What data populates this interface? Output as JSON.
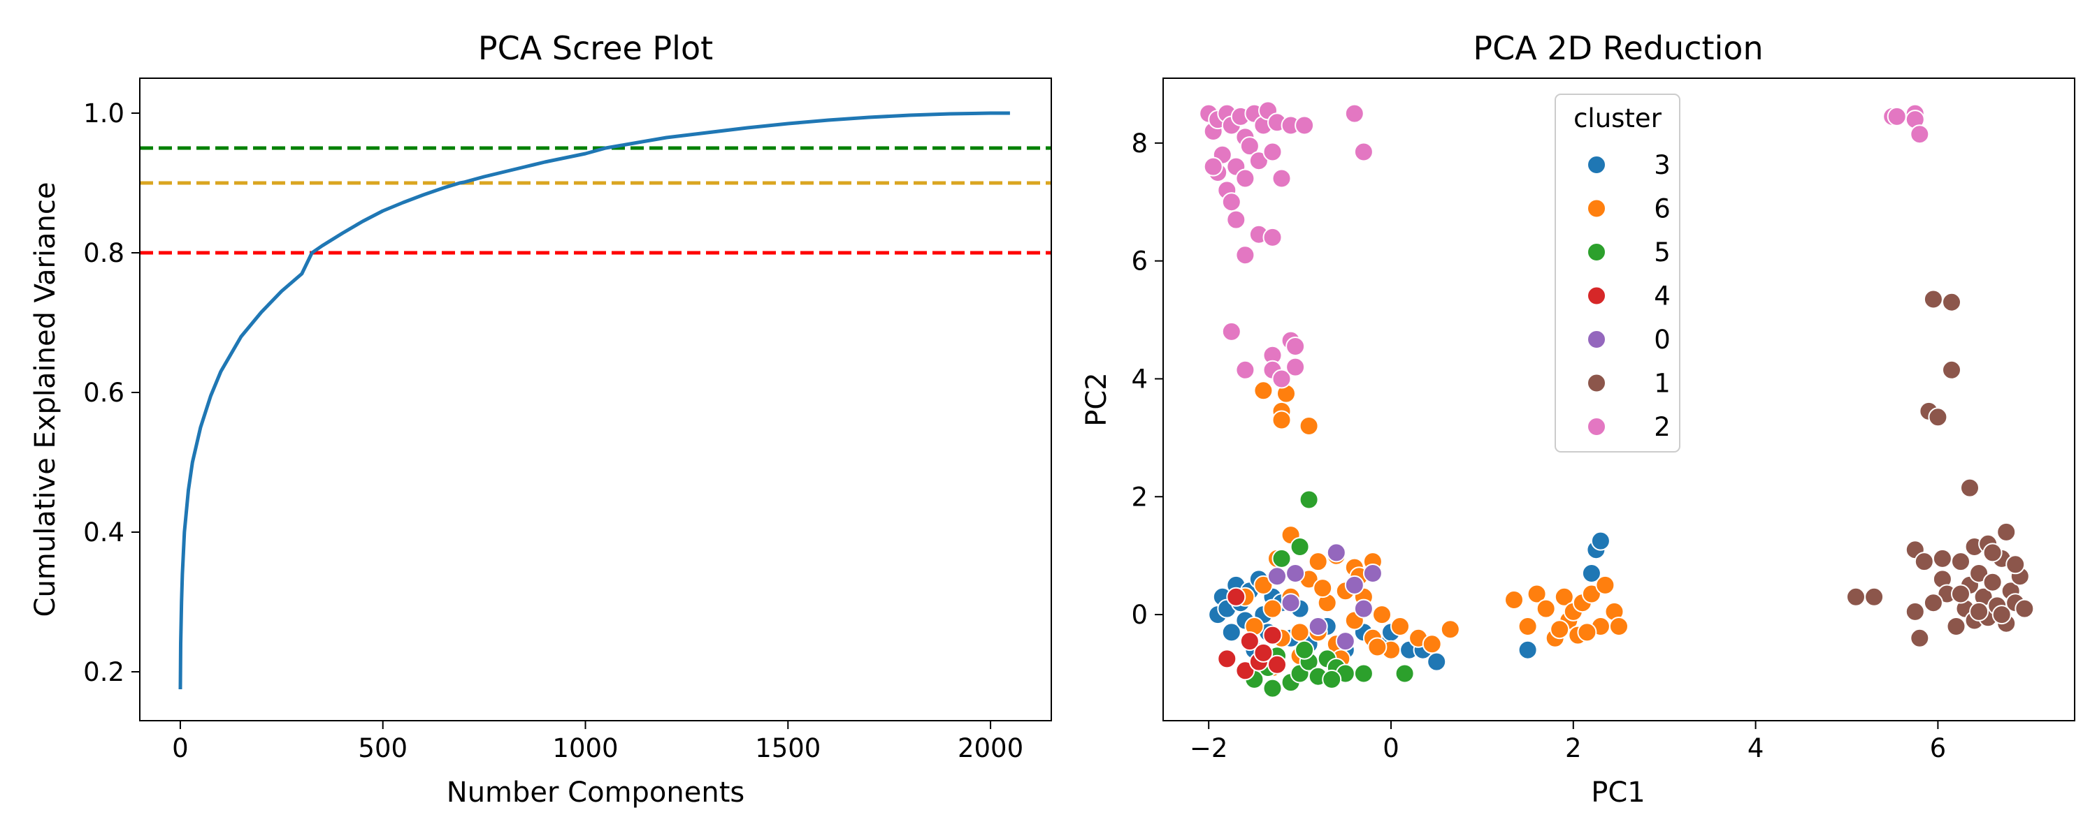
{
  "chart_data": [
    {
      "type": "line",
      "title": "PCA Scree Plot",
      "xlabel": "Number Components",
      "ylabel": "Cumulative Explained Variance",
      "xlim": [
        -100,
        2150
      ],
      "ylim": [
        0.13,
        1.05
      ],
      "xticks": [
        0,
        500,
        1000,
        1500,
        2000
      ],
      "yticks": [
        0.2,
        0.4,
        0.6,
        0.8,
        1.0
      ],
      "xtick_labels": [
        "0",
        "500",
        "1000",
        "1500",
        "2000"
      ],
      "ytick_labels": [
        "0.2",
        "0.4",
        "0.6",
        "0.8",
        "1.0"
      ],
      "grid": false,
      "series": [
        {
          "color": "#1f77b4",
          "x": [
            0,
            1,
            3,
            5,
            10,
            20,
            30,
            50,
            75,
            100,
            150,
            200,
            250,
            300,
            325,
            350,
            400,
            450,
            500,
            550,
            600,
            650,
            690,
            700,
            750,
            800,
            850,
            900,
            950,
            1000,
            1050,
            1100,
            1150,
            1200,
            1300,
            1400,
            1500,
            1600,
            1700,
            1800,
            1900,
            2000,
            2048
          ],
          "y": [
            0.175,
            0.24,
            0.3,
            0.34,
            0.4,
            0.46,
            0.5,
            0.55,
            0.595,
            0.63,
            0.68,
            0.715,
            0.745,
            0.77,
            0.8,
            0.81,
            0.828,
            0.845,
            0.86,
            0.872,
            0.883,
            0.893,
            0.9,
            0.901,
            0.909,
            0.916,
            0.923,
            0.93,
            0.936,
            0.942,
            0.95,
            0.955,
            0.96,
            0.965,
            0.972,
            0.979,
            0.985,
            0.99,
            0.994,
            0.997,
            0.999,
            1.0,
            1.0
          ]
        }
      ],
      "hlines": [
        {
          "y": 0.95,
          "color": "#008000",
          "style": "dashed"
        },
        {
          "y": 0.9,
          "color": "#daa520",
          "style": "dashed"
        },
        {
          "y": 0.8,
          "color": "#ff0000",
          "style": "dashed"
        }
      ]
    },
    {
      "type": "scatter",
      "title": "PCA 2D Reduction",
      "xlabel": "PC1",
      "ylabel": "PC2",
      "xlim": [
        -2.5,
        7.5
      ],
      "ylim": [
        -1.8,
        9.1
      ],
      "xticks": [
        -2,
        0,
        2,
        4,
        6
      ],
      "yticks": [
        0,
        2,
        4,
        6,
        8
      ],
      "xtick_labels": [
        "−2",
        "0",
        "2",
        "4",
        "6"
      ],
      "ytick_labels": [
        "0",
        "2",
        "4",
        "6",
        "8"
      ],
      "grid": false,
      "legend": {
        "title": "cluster",
        "position": "upper center"
      },
      "series": [
        {
          "name": "3",
          "color": "#1f77b4",
          "points": [
            [
              -1.9,
              0.0
            ],
            [
              -1.85,
              0.3
            ],
            [
              -1.8,
              0.1
            ],
            [
              -1.75,
              -0.3
            ],
            [
              -1.7,
              0.5
            ],
            [
              -1.65,
              0.2
            ],
            [
              -1.6,
              -0.1
            ],
            [
              -1.55,
              0.4
            ],
            [
              -1.5,
              -0.6
            ],
            [
              -1.45,
              0.6
            ],
            [
              -1.4,
              0.0
            ],
            [
              -1.35,
              -0.3
            ],
            [
              -1.3,
              0.3
            ],
            [
              -1.25,
              -0.8
            ],
            [
              -1.2,
              0.2
            ],
            [
              -1.1,
              -0.4
            ],
            [
              -1.0,
              0.1
            ],
            [
              -0.9,
              -0.5
            ],
            [
              -0.7,
              -0.2
            ],
            [
              -0.5,
              -0.6
            ],
            [
              -0.3,
              -0.3
            ],
            [
              -0.1,
              -0.5
            ],
            [
              0.0,
              -0.3
            ],
            [
              0.2,
              -0.6
            ],
            [
              0.35,
              -0.6
            ],
            [
              0.45,
              -0.5
            ],
            [
              0.5,
              -0.8
            ],
            [
              1.5,
              -0.6
            ],
            [
              2.2,
              0.7
            ],
            [
              2.25,
              1.1
            ],
            [
              2.3,
              1.25
            ]
          ]
        },
        {
          "name": "6",
          "color": "#ff7f0e",
          "points": [
            [
              -1.4,
              3.8
            ],
            [
              -1.2,
              3.45
            ],
            [
              -1.2,
              3.3
            ],
            [
              -1.15,
              3.75
            ],
            [
              -0.9,
              3.2
            ],
            [
              -1.25,
              0.95
            ],
            [
              -1.1,
              1.35
            ],
            [
              -0.8,
              0.9
            ],
            [
              -0.6,
              1.0
            ],
            [
              -0.4,
              0.8
            ],
            [
              -0.2,
              0.9
            ],
            [
              -1.6,
              0.3
            ],
            [
              -1.5,
              -0.2
            ],
            [
              -1.4,
              0.5
            ],
            [
              -1.3,
              0.1
            ],
            [
              -1.2,
              -0.4
            ],
            [
              -1.1,
              0.3
            ],
            [
              -1.0,
              -0.7
            ],
            [
              -0.9,
              0.6
            ],
            [
              -0.8,
              -0.3
            ],
            [
              -0.7,
              0.2
            ],
            [
              -0.6,
              -0.5
            ],
            [
              -0.5,
              0.4
            ],
            [
              -0.4,
              -0.1
            ],
            [
              -0.3,
              0.3
            ],
            [
              -0.2,
              -0.4
            ],
            [
              -0.1,
              0.0
            ],
            [
              0.0,
              -0.6
            ],
            [
              0.1,
              -0.2
            ],
            [
              0.3,
              -0.4
            ],
            [
              0.45,
              -0.5
            ],
            [
              0.65,
              -0.25
            ],
            [
              -1.3,
              -0.9
            ],
            [
              -1.0,
              -0.3
            ],
            [
              -0.75,
              0.45
            ],
            [
              -0.55,
              -0.75
            ],
            [
              -0.35,
              0.65
            ],
            [
              -0.15,
              -0.55
            ],
            [
              1.35,
              0.25
            ],
            [
              1.5,
              -0.2
            ],
            [
              1.6,
              0.35
            ],
            [
              1.7,
              0.1
            ],
            [
              1.8,
              -0.4
            ],
            [
              1.9,
              0.3
            ],
            [
              1.95,
              -0.1
            ],
            [
              2.0,
              0.05
            ],
            [
              2.05,
              -0.35
            ],
            [
              2.1,
              0.2
            ],
            [
              2.2,
              0.35
            ],
            [
              2.3,
              -0.2
            ],
            [
              2.35,
              0.5
            ],
            [
              2.45,
              0.05
            ],
            [
              2.5,
              -0.2
            ],
            [
              1.85,
              -0.25
            ],
            [
              2.15,
              -0.3
            ]
          ]
        },
        {
          "name": "5",
          "color": "#2ca02c",
          "points": [
            [
              -0.9,
              1.95
            ],
            [
              -1.0,
              1.15
            ],
            [
              -1.2,
              0.95
            ],
            [
              -1.3,
              -1.25
            ],
            [
              -1.25,
              -0.7
            ],
            [
              -1.1,
              -1.15
            ],
            [
              -1.0,
              -1.0
            ],
            [
              -0.9,
              -0.8
            ],
            [
              -0.8,
              -1.05
            ],
            [
              -0.7,
              -0.75
            ],
            [
              -0.6,
              -0.9
            ],
            [
              -0.5,
              -1.0
            ],
            [
              -0.3,
              -1.0
            ],
            [
              0.15,
              -1.0
            ],
            [
              -1.5,
              -1.1
            ],
            [
              -1.35,
              -0.9
            ],
            [
              -0.95,
              -0.6
            ],
            [
              -0.65,
              -1.1
            ]
          ]
        },
        {
          "name": "4",
          "color": "#d62728",
          "points": [
            [
              -1.8,
              -0.75
            ],
            [
              -1.7,
              0.3
            ],
            [
              -1.6,
              -0.95
            ],
            [
              -1.55,
              -0.45
            ],
            [
              -1.45,
              -0.8
            ],
            [
              -1.3,
              -0.35
            ],
            [
              -1.4,
              -0.65
            ],
            [
              -1.25,
              -0.85
            ]
          ]
        },
        {
          "name": "0",
          "color": "#9467bd",
          "points": [
            [
              -1.25,
              0.65
            ],
            [
              -1.05,
              0.7
            ],
            [
              -0.6,
              1.05
            ],
            [
              -0.4,
              0.5
            ],
            [
              -0.2,
              0.7
            ],
            [
              -1.1,
              0.2
            ],
            [
              -0.8,
              -0.2
            ],
            [
              -0.3,
              0.1
            ],
            [
              -0.5,
              -0.45
            ]
          ]
        },
        {
          "name": "1",
          "color": "#8c564b",
          "points": [
            [
              5.1,
              0.3
            ],
            [
              5.3,
              0.3
            ],
            [
              5.75,
              1.1
            ],
            [
              5.75,
              0.05
            ],
            [
              5.8,
              -0.4
            ],
            [
              5.85,
              0.9
            ],
            [
              5.9,
              3.45
            ],
            [
              5.95,
              5.35
            ],
            [
              6.0,
              3.35
            ],
            [
              6.05,
              0.6
            ],
            [
              6.1,
              0.35
            ],
            [
              6.15,
              5.3
            ],
            [
              6.15,
              4.15
            ],
            [
              6.2,
              -0.2
            ],
            [
              6.25,
              0.9
            ],
            [
              6.3,
              0.1
            ],
            [
              6.35,
              2.15
            ],
            [
              6.35,
              0.5
            ],
            [
              6.4,
              1.15
            ],
            [
              6.4,
              -0.1
            ],
            [
              6.45,
              0.7
            ],
            [
              6.5,
              0.3
            ],
            [
              6.55,
              1.2
            ],
            [
              6.55,
              -0.05
            ],
            [
              6.6,
              0.55
            ],
            [
              6.65,
              0.15
            ],
            [
              6.7,
              0.95
            ],
            [
              6.75,
              1.4
            ],
            [
              6.75,
              -0.15
            ],
            [
              6.8,
              0.4
            ],
            [
              6.85,
              0.2
            ],
            [
              6.9,
              0.65
            ],
            [
              6.95,
              0.1
            ],
            [
              5.95,
              0.2
            ],
            [
              6.05,
              0.95
            ],
            [
              6.25,
              0.35
            ],
            [
              6.45,
              0.05
            ],
            [
              6.6,
              1.05
            ],
            [
              6.7,
              0.0
            ],
            [
              6.85,
              0.85
            ]
          ]
        },
        {
          "name": "2",
          "color": "#e377c2",
          "points": [
            [
              -2.0,
              8.5
            ],
            [
              -1.95,
              8.2
            ],
            [
              -1.9,
              8.4
            ],
            [
              -1.85,
              7.8
            ],
            [
              -1.8,
              8.5
            ],
            [
              -1.75,
              8.3
            ],
            [
              -1.7,
              7.6
            ],
            [
              -1.65,
              8.45
            ],
            [
              -1.6,
              8.1
            ],
            [
              -1.55,
              7.95
            ],
            [
              -1.5,
              8.5
            ],
            [
              -1.45,
              7.7
            ],
            [
              -1.4,
              8.3
            ],
            [
              -1.35,
              8.55
            ],
            [
              -1.3,
              7.85
            ],
            [
              -1.25,
              8.35
            ],
            [
              -1.2,
              7.4
            ],
            [
              -1.9,
              7.5
            ],
            [
              -1.95,
              7.6
            ],
            [
              -1.8,
              7.2
            ],
            [
              -1.75,
              7.0
            ],
            [
              -1.7,
              6.7
            ],
            [
              -1.6,
              6.1
            ],
            [
              -1.45,
              6.45
            ],
            [
              -1.3,
              6.4
            ],
            [
              -1.6,
              7.4
            ],
            [
              -1.1,
              8.3
            ],
            [
              -0.95,
              8.3
            ],
            [
              -0.4,
              8.5
            ],
            [
              -0.3,
              7.85
            ],
            [
              -1.75,
              4.8
            ],
            [
              -1.6,
              4.15
            ],
            [
              -1.3,
              4.4
            ],
            [
              -1.3,
              4.15
            ],
            [
              -1.2,
              4.0
            ],
            [
              -1.1,
              4.65
            ],
            [
              -1.05,
              4.55
            ],
            [
              -1.05,
              4.2
            ],
            [
              5.5,
              8.45
            ],
            [
              5.55,
              8.45
            ],
            [
              5.75,
              8.5
            ],
            [
              5.75,
              8.4
            ],
            [
              5.8,
              8.15
            ]
          ]
        }
      ]
    }
  ]
}
